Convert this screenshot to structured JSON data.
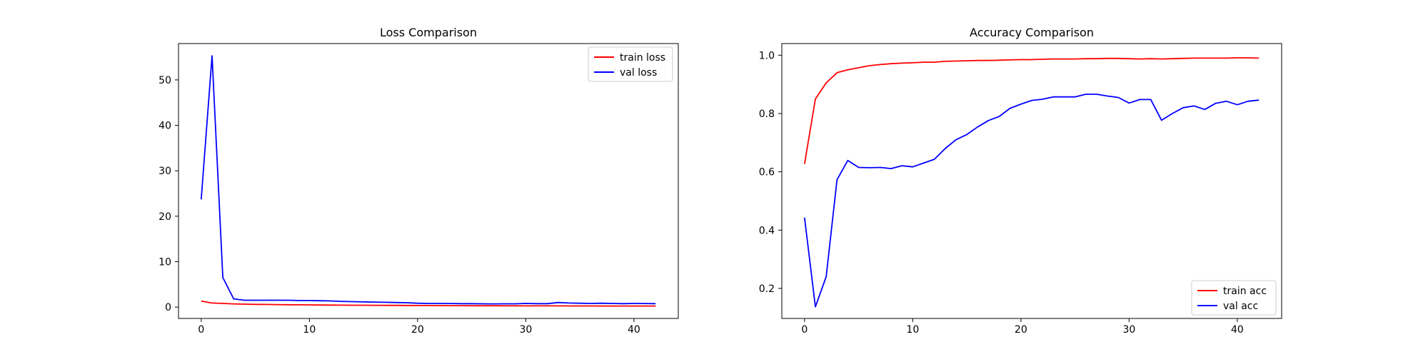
{
  "chart_data": [
    {
      "type": "line",
      "title": "Loss Comparison",
      "xlabel": "",
      "ylabel": "",
      "xlim": [
        -2.1,
        44.1
      ],
      "ylim": [
        -2.5,
        58.0
      ],
      "xticks": [
        0,
        10,
        20,
        30,
        40
      ],
      "yticks": [
        0,
        10,
        20,
        30,
        40,
        50
      ],
      "grid": false,
      "legend": "top-right",
      "x": [
        0,
        1,
        2,
        3,
        4,
        5,
        6,
        7,
        8,
        9,
        10,
        11,
        12,
        13,
        14,
        15,
        16,
        17,
        18,
        19,
        20,
        21,
        22,
        23,
        24,
        25,
        26,
        27,
        28,
        29,
        30,
        31,
        32,
        33,
        34,
        35,
        36,
        37,
        38,
        39,
        40,
        41,
        42
      ],
      "series": [
        {
          "name": "train loss",
          "color": "#ff0000",
          "values": [
            1.3,
            0.9,
            0.8,
            0.7,
            0.65,
            0.6,
            0.58,
            0.55,
            0.52,
            0.5,
            0.48,
            0.46,
            0.44,
            0.42,
            0.41,
            0.4,
            0.39,
            0.38,
            0.37,
            0.36,
            0.35,
            0.34,
            0.33,
            0.32,
            0.31,
            0.3,
            0.3,
            0.29,
            0.28,
            0.28,
            0.27,
            0.27,
            0.26,
            0.26,
            0.25,
            0.25,
            0.25,
            0.24,
            0.24,
            0.24,
            0.23,
            0.23,
            0.23
          ]
        },
        {
          "name": "val loss",
          "color": "#0000ff",
          "values": [
            23.7,
            55.3,
            6.5,
            1.8,
            1.5,
            1.5,
            1.5,
            1.5,
            1.5,
            1.45,
            1.45,
            1.4,
            1.35,
            1.25,
            1.2,
            1.15,
            1.1,
            1.05,
            1.0,
            0.95,
            0.85,
            0.8,
            0.8,
            0.78,
            0.75,
            0.75,
            0.72,
            0.7,
            0.72,
            0.72,
            0.8,
            0.75,
            0.75,
            1.0,
            0.9,
            0.85,
            0.8,
            0.85,
            0.8,
            0.75,
            0.8,
            0.78,
            0.75
          ]
        }
      ]
    },
    {
      "type": "line",
      "title": "Accuracy Comparison",
      "xlabel": "",
      "ylabel": "",
      "xlim": [
        -2.1,
        44.1
      ],
      "ylim": [
        0.097,
        1.04
      ],
      "xticks": [
        0,
        10,
        20,
        30,
        40
      ],
      "yticks": [
        0.2,
        0.4,
        0.6,
        0.8,
        1.0
      ],
      "ytick_labels": [
        "0.2",
        "0.4",
        "0.6",
        "0.8",
        "1.0"
      ],
      "grid": false,
      "legend": "bottom-right",
      "x": [
        0,
        1,
        2,
        3,
        4,
        5,
        6,
        7,
        8,
        9,
        10,
        11,
        12,
        13,
        14,
        15,
        16,
        17,
        18,
        19,
        20,
        21,
        22,
        23,
        24,
        25,
        26,
        27,
        28,
        29,
        30,
        31,
        32,
        33,
        34,
        35,
        36,
        37,
        38,
        39,
        40,
        41,
        42
      ],
      "series": [
        {
          "name": "train acc",
          "color": "#ff0000",
          "values": [
            0.627,
            0.85,
            0.905,
            0.94,
            0.95,
            0.957,
            0.964,
            0.968,
            0.971,
            0.973,
            0.974,
            0.976,
            0.976,
            0.979,
            0.98,
            0.981,
            0.982,
            0.982,
            0.983,
            0.984,
            0.985,
            0.985,
            0.986,
            0.987,
            0.987,
            0.987,
            0.988,
            0.988,
            0.989,
            0.989,
            0.988,
            0.987,
            0.988,
            0.987,
            0.988,
            0.989,
            0.99,
            0.99,
            0.99,
            0.99,
            0.991,
            0.991,
            0.99
          ]
        },
        {
          "name": "val acc",
          "color": "#0000ff",
          "values": [
            0.443,
            0.137,
            0.24,
            0.573,
            0.639,
            0.615,
            0.614,
            0.615,
            0.611,
            0.621,
            0.617,
            0.63,
            0.643,
            0.68,
            0.71,
            0.728,
            0.754,
            0.776,
            0.79,
            0.818,
            0.832,
            0.845,
            0.849,
            0.857,
            0.857,
            0.857,
            0.866,
            0.866,
            0.86,
            0.855,
            0.836,
            0.848,
            0.848,
            0.777,
            0.8,
            0.82,
            0.826,
            0.814,
            0.835,
            0.842,
            0.83,
            0.842,
            0.846
          ]
        }
      ]
    }
  ]
}
